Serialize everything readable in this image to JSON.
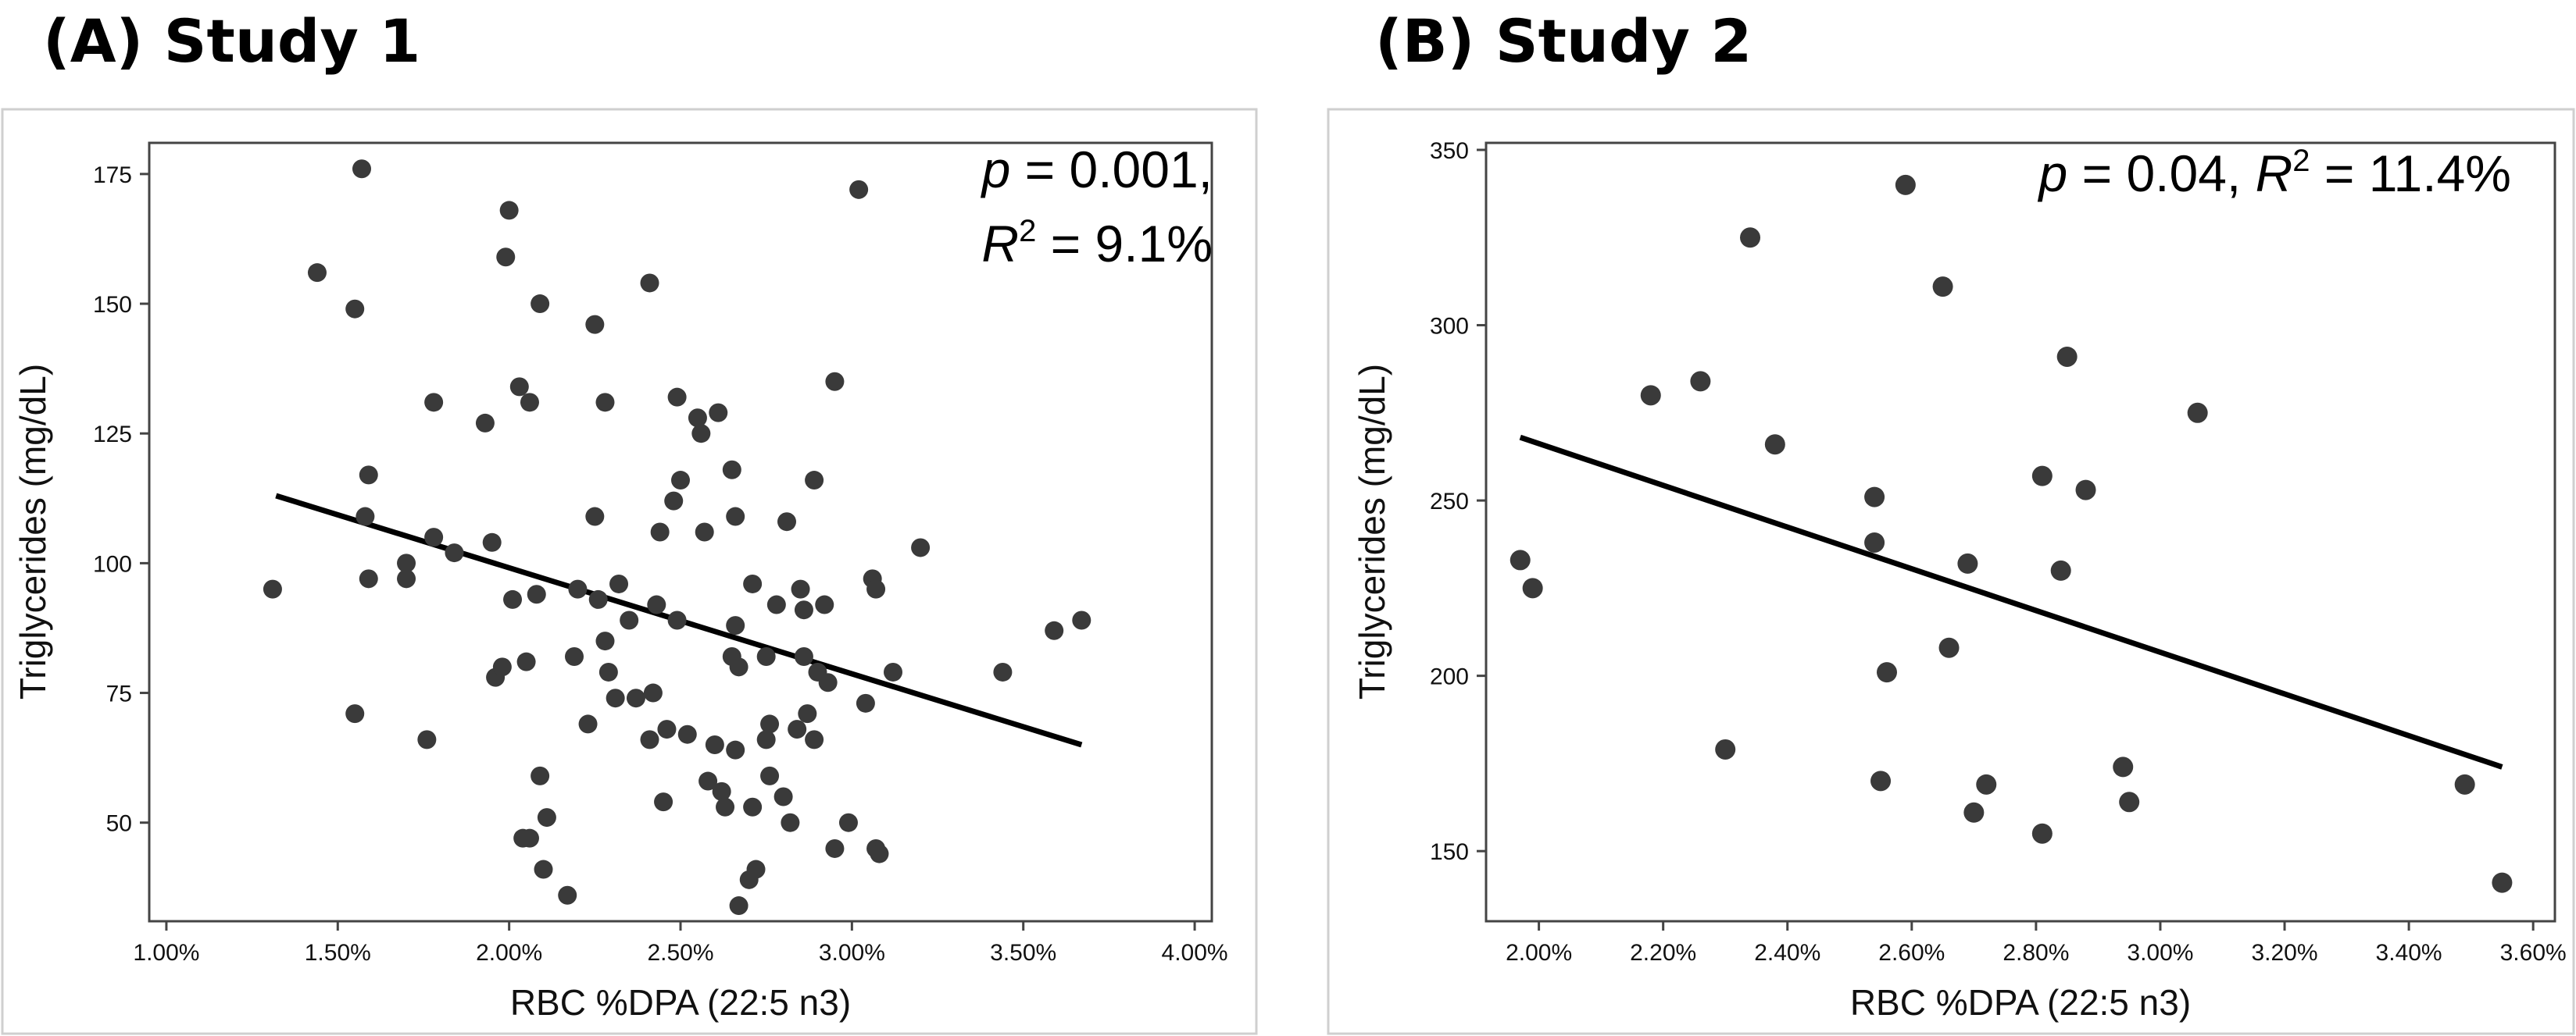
{
  "panels": [
    {
      "id": "a",
      "title": "(A) Study 1",
      "annotation_lines": [
        {
          "italic": "p",
          "rest": " = 0.001,"
        },
        {
          "italic": "R",
          "sup": "2",
          "rest": " = 9.1%"
        }
      ]
    },
    {
      "id": "b",
      "title": "(B) Study 2",
      "annotation_lines": [
        {
          "italic": "p",
          "rest": " = 0.04, ",
          "italic2": "R",
          "sup": "2",
          "rest2": " = 11.4%"
        }
      ]
    }
  ],
  "chart_data": [
    {
      "type": "scatter",
      "title": "(A) Study 1",
      "xlabel": "RBC %DPA (22:5 n3)",
      "ylabel": "Triglycerides (mg/dL)",
      "xlim": [
        0.95,
        4.05
      ],
      "ylim": [
        31,
        181
      ],
      "xticks": [
        1.0,
        1.5,
        2.0,
        2.5,
        3.0,
        3.5,
        4.0
      ],
      "xtick_labels": [
        "1.00%",
        "1.50%",
        "2.00%",
        "2.50%",
        "3.00%",
        "3.50%",
        "4.00%"
      ],
      "yticks": [
        50,
        75,
        100,
        125,
        150,
        175
      ],
      "ytick_labels": [
        "50",
        "75",
        "100",
        "125",
        "150",
        "175"
      ],
      "grid": false,
      "annotation": "p = 0.001, R2 = 9.1%",
      "trend_line": [
        [
          1.32,
          113
        ],
        [
          3.67,
          65
        ]
      ],
      "points": [
        [
          1.31,
          95
        ],
        [
          1.44,
          156
        ],
        [
          1.55,
          149
        ],
        [
          1.57,
          176
        ],
        [
          1.58,
          109
        ],
        [
          1.59,
          117
        ],
        [
          1.59,
          97
        ],
        [
          1.55,
          71
        ],
        [
          1.7,
          100
        ],
        [
          1.7,
          97
        ],
        [
          1.76,
          66
        ],
        [
          1.78,
          105
        ],
        [
          1.78,
          131
        ],
        [
          1.84,
          102
        ],
        [
          1.93,
          127
        ],
        [
          1.95,
          104
        ],
        [
          1.96,
          78
        ],
        [
          1.98,
          80
        ],
        [
          1.99,
          159
        ],
        [
          2.0,
          168
        ],
        [
          2.01,
          93
        ],
        [
          2.03,
          134
        ],
        [
          2.04,
          47
        ],
        [
          2.05,
          81
        ],
        [
          2.06,
          47
        ],
        [
          2.06,
          131
        ],
        [
          2.08,
          94
        ],
        [
          2.09,
          150
        ],
        [
          2.09,
          59
        ],
        [
          2.1,
          41
        ],
        [
          2.11,
          51
        ],
        [
          2.17,
          36
        ],
        [
          2.19,
          82
        ],
        [
          2.2,
          95
        ],
        [
          2.23,
          69
        ],
        [
          2.25,
          109
        ],
        [
          2.25,
          146
        ],
        [
          2.26,
          93
        ],
        [
          2.28,
          131
        ],
        [
          2.28,
          85
        ],
        [
          2.29,
          79
        ],
        [
          2.31,
          74
        ],
        [
          2.32,
          96
        ],
        [
          2.35,
          89
        ],
        [
          2.37,
          74
        ],
        [
          2.41,
          154
        ],
        [
          2.41,
          66
        ],
        [
          2.42,
          75
        ],
        [
          2.43,
          92
        ],
        [
          2.44,
          106
        ],
        [
          2.45,
          54
        ],
        [
          2.46,
          68
        ],
        [
          2.48,
          112
        ],
        [
          2.49,
          132
        ],
        [
          2.5,
          116
        ],
        [
          2.49,
          89
        ],
        [
          2.52,
          67
        ],
        [
          2.55,
          128
        ],
        [
          2.56,
          125
        ],
        [
          2.57,
          106
        ],
        [
          2.58,
          58
        ],
        [
          2.6,
          65
        ],
        [
          2.61,
          129
        ],
        [
          2.62,
          56
        ],
        [
          2.63,
          53
        ],
        [
          2.65,
          118
        ],
        [
          2.66,
          109
        ],
        [
          2.65,
          82
        ],
        [
          2.66,
          88
        ],
        [
          2.67,
          80
        ],
        [
          2.66,
          64
        ],
        [
          2.67,
          34
        ],
        [
          2.7,
          39
        ],
        [
          2.71,
          53
        ],
        [
          2.71,
          96
        ],
        [
          2.72,
          41
        ],
        [
          2.75,
          82
        ],
        [
          2.75,
          66
        ],
        [
          2.76,
          59
        ],
        [
          2.76,
          69
        ],
        [
          2.78,
          92
        ],
        [
          2.8,
          55
        ],
        [
          2.81,
          108
        ],
        [
          2.82,
          50
        ],
        [
          2.84,
          68
        ],
        [
          2.85,
          95
        ],
        [
          2.86,
          91
        ],
        [
          2.86,
          82
        ],
        [
          2.87,
          71
        ],
        [
          2.89,
          66
        ],
        [
          2.89,
          116
        ],
        [
          2.9,
          79
        ],
        [
          2.92,
          92
        ],
        [
          2.93,
          77
        ],
        [
          2.95,
          135
        ],
        [
          2.95,
          45
        ],
        [
          2.99,
          50
        ],
        [
          3.02,
          172
        ],
        [
          3.04,
          73
        ],
        [
          3.06,
          97
        ],
        [
          3.07,
          95
        ],
        [
          3.07,
          45
        ],
        [
          3.08,
          44
        ],
        [
          3.12,
          79
        ],
        [
          3.2,
          103
        ],
        [
          3.44,
          79
        ],
        [
          3.59,
          87
        ],
        [
          3.67,
          89
        ]
      ]
    },
    {
      "type": "scatter",
      "title": "(B) Study 2",
      "xlabel": "RBC %DPA (22:5 n3)",
      "ylabel": "Triglycerides (mg/dL)",
      "xlim": [
        1.915,
        3.635
      ],
      "ylim": [
        130,
        352
      ],
      "xticks": [
        2.0,
        2.2,
        2.4,
        2.6,
        2.8,
        3.0,
        3.2,
        3.4,
        3.6
      ],
      "xtick_labels": [
        "2.00%",
        "2.20%",
        "2.40%",
        "2.60%",
        "2.80%",
        "3.00%",
        "3.20%",
        "3.40%",
        "3.60%"
      ],
      "yticks": [
        150,
        200,
        250,
        300,
        350
      ],
      "ytick_labels": [
        "150",
        "200",
        "250",
        "300",
        "350"
      ],
      "grid": false,
      "annotation": "p = 0.04, R2 = 11.4%",
      "trend_line": [
        [
          1.97,
          268
        ],
        [
          3.55,
          174
        ]
      ],
      "points": [
        [
          1.97,
          233
        ],
        [
          1.99,
          225
        ],
        [
          2.18,
          280
        ],
        [
          2.26,
          284
        ],
        [
          2.3,
          179
        ],
        [
          2.34,
          325
        ],
        [
          2.38,
          266
        ],
        [
          2.54,
          251
        ],
        [
          2.54,
          238
        ],
        [
          2.55,
          170
        ],
        [
          2.56,
          201
        ],
        [
          2.59,
          340
        ],
        [
          2.65,
          311
        ],
        [
          2.66,
          208
        ],
        [
          2.69,
          232
        ],
        [
          2.7,
          161
        ],
        [
          2.72,
          169
        ],
        [
          2.81,
          257
        ],
        [
          2.81,
          155
        ],
        [
          2.84,
          230
        ],
        [
          2.85,
          291
        ],
        [
          2.88,
          253
        ],
        [
          2.94,
          174
        ],
        [
          2.95,
          164
        ],
        [
          3.06,
          275
        ],
        [
          3.49,
          169
        ],
        [
          3.55,
          141
        ]
      ]
    }
  ]
}
